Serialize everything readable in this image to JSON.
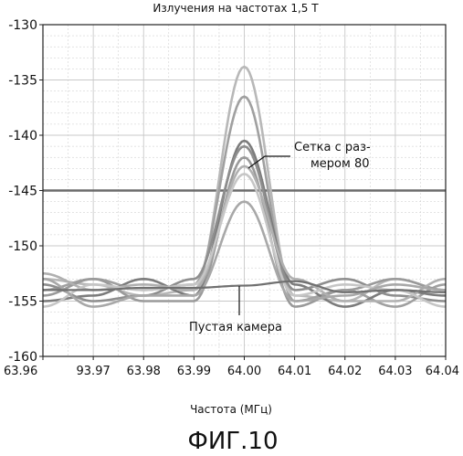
{
  "chart_data": {
    "type": "line",
    "title": "Излучения на частотах 1,5 Т",
    "xlabel": "Частота (МГц)",
    "ylabel": "",
    "x_tick_labels": [
      "63.96",
      "93.97",
      "63.98",
      "63.99",
      "64.00",
      "64.01",
      "64.02",
      "64.03",
      "64.04"
    ],
    "x": [
      63.96,
      63.97,
      63.98,
      63.99,
      64.0,
      64.01,
      64.02,
      64.03,
      64.04
    ],
    "xlim": [
      63.96,
      64.04
    ],
    "ylim": [
      -160,
      -130
    ],
    "y_ticks": [
      -130,
      -135,
      -140,
      -145,
      -150,
      -155,
      -160
    ],
    "grid": true,
    "reference_line": -145,
    "series": [
      {
        "values": [
          -153.0,
          -153.5,
          -154.5,
          -154.0,
          -133.8,
          -154.5,
          -155.0,
          -153.0,
          -154.0
        ]
      },
      {
        "values": [
          -154.0,
          -153.0,
          -154.0,
          -153.5,
          -136.5,
          -155.0,
          -154.0,
          -155.5,
          -153.5
        ]
      },
      {
        "values": [
          -155.0,
          -154.5,
          -153.0,
          -154.5,
          -140.5,
          -153.5,
          -155.5,
          -154.0,
          -154.5
        ]
      },
      {
        "values": [
          -153.5,
          -155.0,
          -154.5,
          -153.0,
          -141.0,
          -154.0,
          -153.0,
          -154.5,
          -155.0
        ]
      },
      {
        "values": [
          -154.5,
          -153.0,
          -155.0,
          -155.0,
          -142.0,
          -155.5,
          -154.0,
          -153.0,
          -154.0
        ]
      },
      {
        "values": [
          -152.5,
          -154.0,
          -153.5,
          -154.0,
          -142.8,
          -153.0,
          -155.0,
          -155.0,
          -153.0
        ]
      },
      {
        "values": [
          -155.5,
          -153.5,
          -154.0,
          -153.5,
          -143.5,
          -154.5,
          -153.5,
          -154.0,
          -155.5
        ]
      },
      {
        "values": [
          -153.0,
          -155.5,
          -154.5,
          -154.5,
          -146.0,
          -155.0,
          -154.5,
          -153.5,
          -154.0
        ]
      },
      {
        "values": [
          -154.0,
          -154.0,
          -153.8,
          -153.8,
          -153.6,
          -153.2,
          -154.2,
          -154.0,
          -154.2
        ]
      }
    ],
    "annotations": [
      "Сетка с раз-",
      "мером 80",
      "Пустая камера"
    ]
  },
  "figure_label": "ФИГ.10",
  "colors": {
    "series": [
      "#b8b8b8",
      "#a0a0a0",
      "#7c7c7c",
      "#8e8e8e",
      "#9a9a9a",
      "#b0b0b0",
      "#c6c6c6",
      "#a8a8a8",
      "#707070"
    ],
    "reference": "#6b6b6b",
    "grid": "#c8c8c8",
    "axis": "#222222"
  }
}
